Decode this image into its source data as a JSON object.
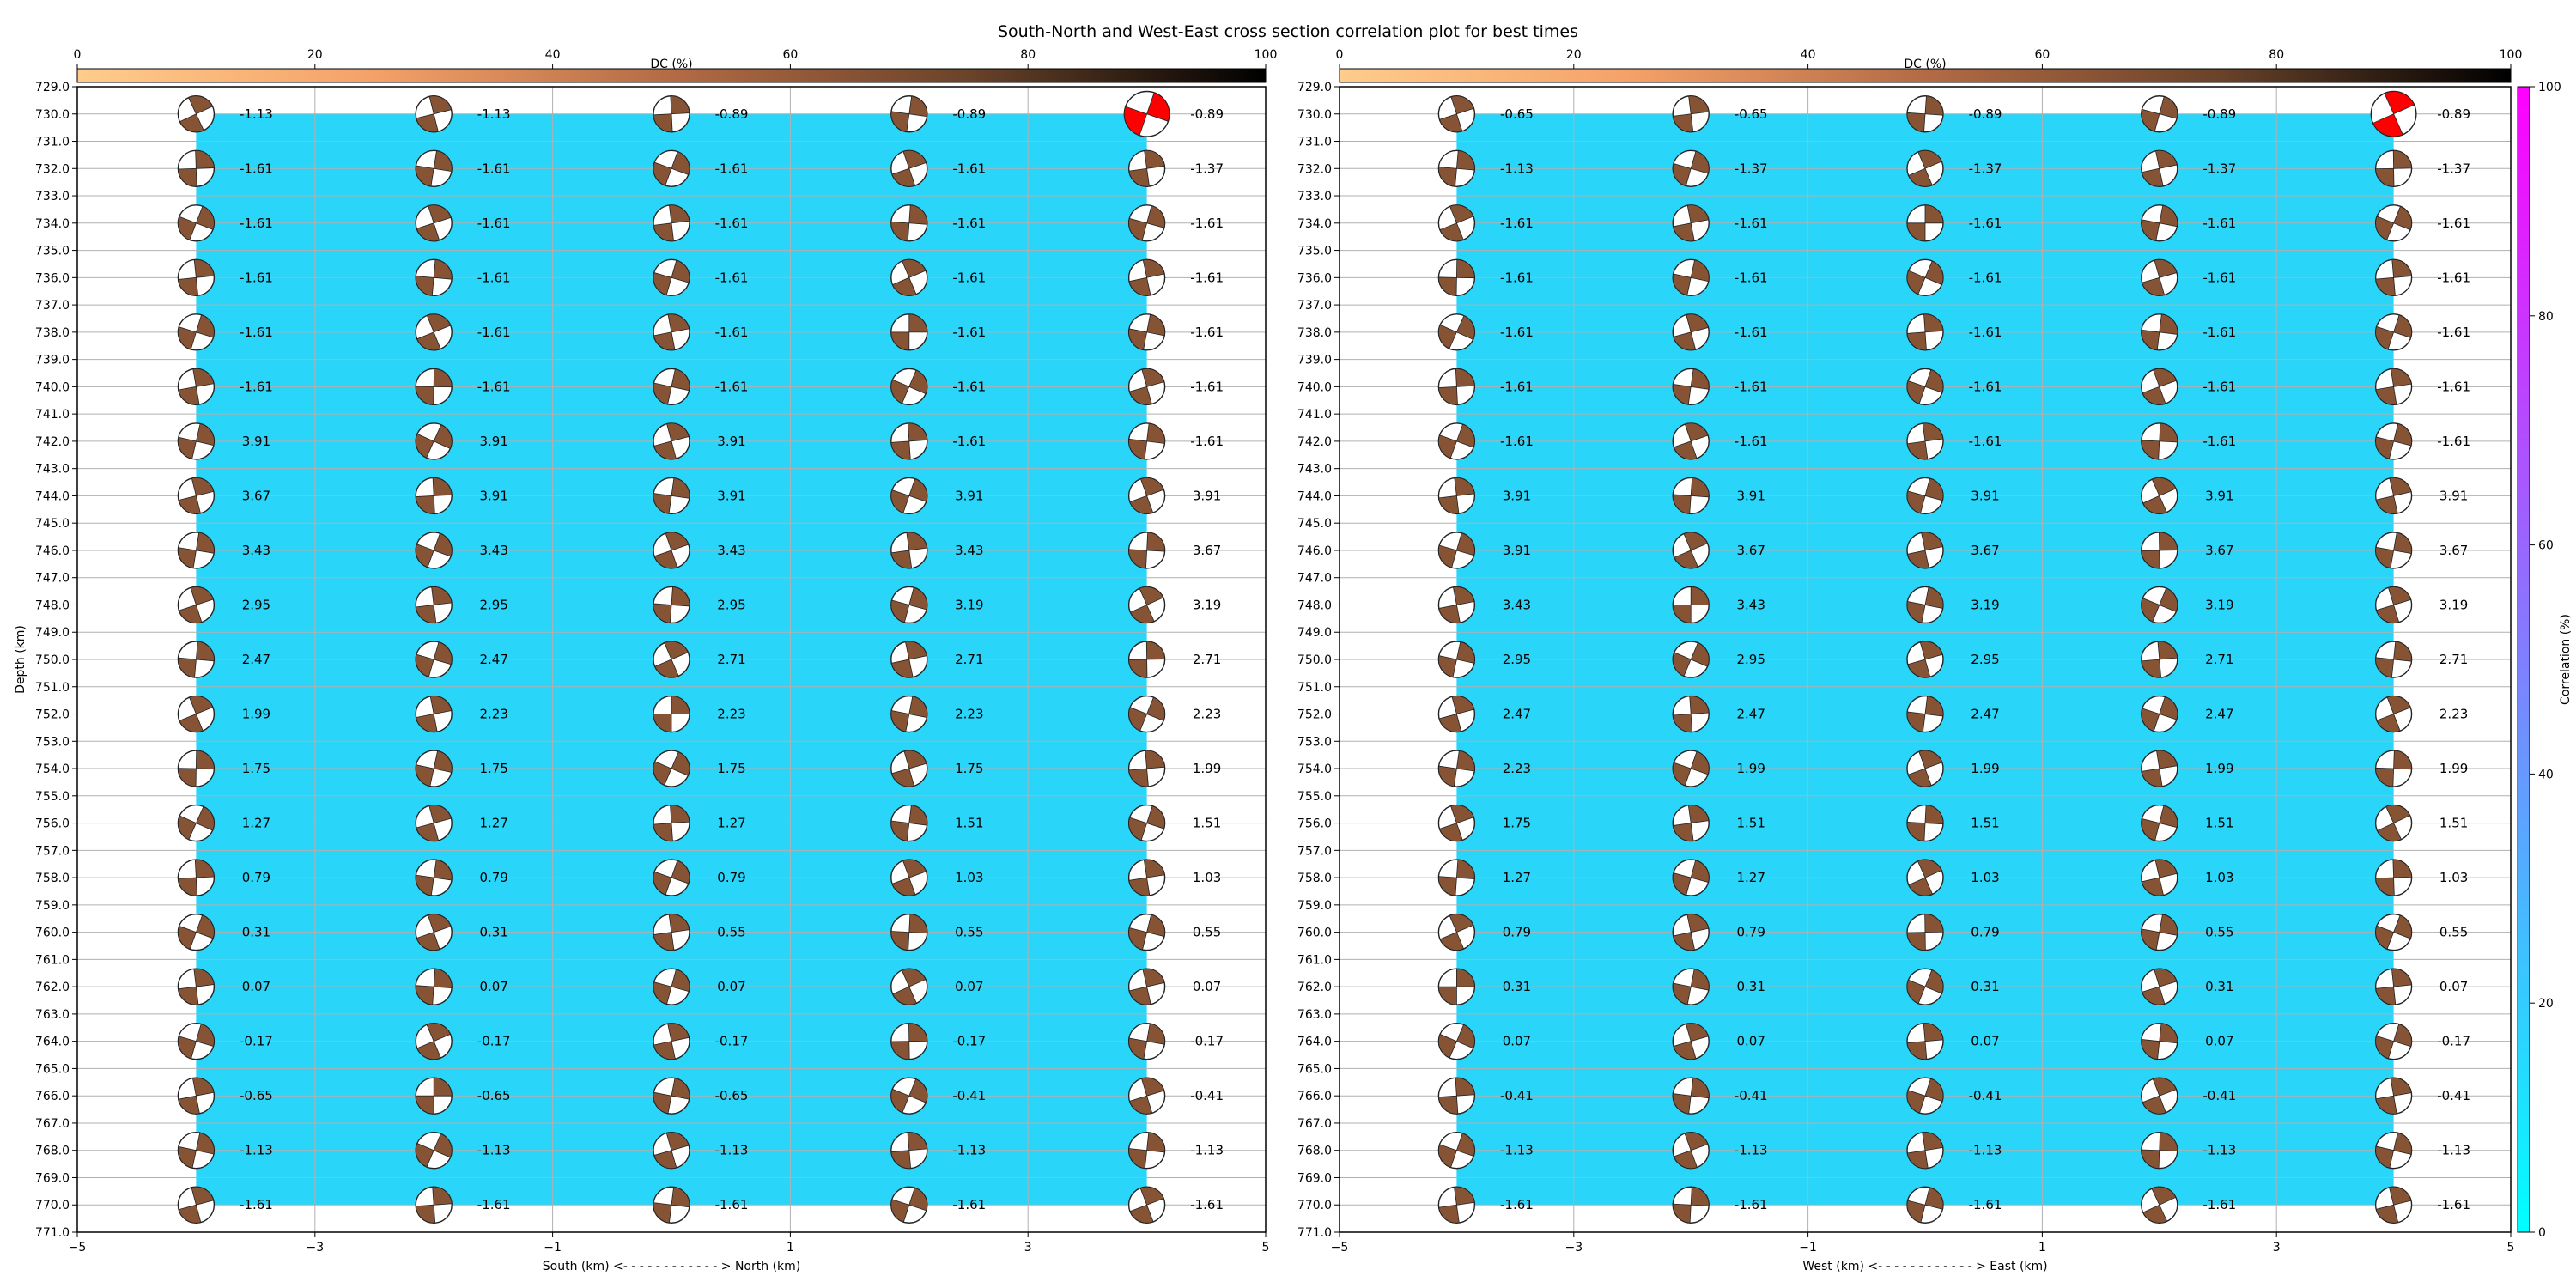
{
  "title": "South-North and West-East cross section correlation plot for best times",
  "colors": {
    "background_fill": "#29d6fa",
    "best_solution": "#ff0000",
    "grid": "#b0b0b0"
  },
  "dc_colorbar": {
    "label": "DC (%)",
    "ticks": [
      "0",
      "20",
      "40",
      "60",
      "80",
      "100"
    ],
    "range": [
      0,
      100
    ],
    "colors": [
      "#ffcc8c",
      "#f4a168",
      "#b36b45",
      "#6a432a",
      "#000000"
    ]
  },
  "correlation_colorbar": {
    "label": "Correlation (%)",
    "ticks": [
      "0",
      "20",
      "40",
      "60",
      "80",
      "100"
    ],
    "range": [
      0,
      100
    ],
    "colors": [
      "#00ffff",
      "#ff00ff"
    ]
  },
  "chart_data": [
    {
      "type": "scatter",
      "name": "south-north",
      "xlabel": "South (km) <- - - - - - - - - - - - > North (km)",
      "ylabel": "Depth (km)",
      "xlim": [
        -5,
        5
      ],
      "ylim": [
        771,
        729
      ],
      "x_ticks": [
        "−5",
        "−3",
        "−1",
        "1",
        "3",
        "5"
      ],
      "y_ticks": [
        "729.0",
        "730.0",
        "731.0",
        "732.0",
        "733.0",
        "734.0",
        "735.0",
        "736.0",
        "737.0",
        "738.0",
        "739.0",
        "740.0",
        "741.0",
        "742.0",
        "743.0",
        "744.0",
        "745.0",
        "746.0",
        "747.0",
        "748.0",
        "749.0",
        "750.0",
        "751.0",
        "752.0",
        "753.0",
        "754.0",
        "755.0",
        "756.0",
        "757.0",
        "758.0",
        "759.0",
        "760.0",
        "761.0",
        "762.0",
        "763.0",
        "764.0",
        "765.0",
        "766.0",
        "767.0",
        "768.0",
        "769.0",
        "770.0",
        "771.0"
      ],
      "x": [
        -4,
        -2,
        0,
        2,
        4
      ],
      "depths": [
        730,
        732,
        734,
        736,
        738,
        740,
        742,
        744,
        746,
        748,
        750,
        752,
        754,
        756,
        758,
        760,
        762,
        764,
        766,
        768,
        770
      ],
      "time_labels": [
        [
          "-1.13",
          "-1.13",
          "-0.89",
          "-0.89",
          "-0.89"
        ],
        [
          "-1.61",
          "-1.61",
          "-1.61",
          "-1.61",
          "-1.37"
        ],
        [
          "-1.61",
          "-1.61",
          "-1.61",
          "-1.61",
          "-1.61"
        ],
        [
          "-1.61",
          "-1.61",
          "-1.61",
          "-1.61",
          "-1.61"
        ],
        [
          "-1.61",
          "-1.61",
          "-1.61",
          "-1.61",
          "-1.61"
        ],
        [
          "-1.61",
          "-1.61",
          "-1.61",
          "-1.61",
          "-1.61"
        ],
        [
          "3.91",
          "3.91",
          "3.91",
          "-1.61",
          "-1.61"
        ],
        [
          "3.67",
          "3.91",
          "3.91",
          "3.91",
          "3.91"
        ],
        [
          "3.43",
          "3.43",
          "3.43",
          "3.43",
          "3.67"
        ],
        [
          "2.95",
          "2.95",
          "2.95",
          "3.19",
          "3.19"
        ],
        [
          "2.47",
          "2.47",
          "2.71",
          "2.71",
          "2.71"
        ],
        [
          "1.99",
          "2.23",
          "2.23",
          "2.23",
          "2.23"
        ],
        [
          "1.75",
          "1.75",
          "1.75",
          "1.75",
          "1.99"
        ],
        [
          "1.27",
          "1.27",
          "1.27",
          "1.51",
          "1.51"
        ],
        [
          "0.79",
          "0.79",
          "0.79",
          "1.03",
          "1.03"
        ],
        [
          "0.31",
          "0.31",
          "0.55",
          "0.55",
          "0.55"
        ],
        [
          "0.07",
          "0.07",
          "0.07",
          "0.07",
          "0.07"
        ],
        [
          "-0.17",
          "-0.17",
          "-0.17",
          "-0.17",
          "-0.17"
        ],
        [
          "-0.65",
          "-0.65",
          "-0.65",
          "-0.41",
          "-0.41"
        ],
        [
          "-1.13",
          "-1.13",
          "-1.13",
          "-1.13",
          "-1.13"
        ],
        [
          "-1.61",
          "-1.61",
          "-1.61",
          "-1.61",
          "-1.61"
        ]
      ],
      "correlation_percent_approx": 15,
      "dc_percent_approx": 65,
      "best_solution": {
        "x": 4,
        "depth": 730
      }
    },
    {
      "type": "scatter",
      "name": "west-east",
      "xlabel": "West (km) <- - - - - - - - - - - - > East (km)",
      "ylabel": "",
      "xlim": [
        -5,
        5
      ],
      "ylim": [
        771,
        729
      ],
      "x_ticks": [
        "−5",
        "−3",
        "−1",
        "1",
        "3",
        "5"
      ],
      "y_ticks": [
        "729.0",
        "730.0",
        "731.0",
        "732.0",
        "733.0",
        "734.0",
        "735.0",
        "736.0",
        "737.0",
        "738.0",
        "739.0",
        "740.0",
        "741.0",
        "742.0",
        "743.0",
        "744.0",
        "745.0",
        "746.0",
        "747.0",
        "748.0",
        "749.0",
        "750.0",
        "751.0",
        "752.0",
        "753.0",
        "754.0",
        "755.0",
        "756.0",
        "757.0",
        "758.0",
        "759.0",
        "760.0",
        "761.0",
        "762.0",
        "763.0",
        "764.0",
        "765.0",
        "766.0",
        "767.0",
        "768.0",
        "769.0",
        "770.0",
        "771.0"
      ],
      "x": [
        -4,
        -2,
        0,
        2,
        4
      ],
      "depths": [
        730,
        732,
        734,
        736,
        738,
        740,
        742,
        744,
        746,
        748,
        750,
        752,
        754,
        756,
        758,
        760,
        762,
        764,
        766,
        768,
        770
      ],
      "time_labels": [
        [
          "-0.65",
          "-0.65",
          "-0.89",
          "-0.89",
          "-0.89"
        ],
        [
          "-1.13",
          "-1.37",
          "-1.37",
          "-1.37",
          "-1.37"
        ],
        [
          "-1.61",
          "-1.61",
          "-1.61",
          "-1.61",
          "-1.61"
        ],
        [
          "-1.61",
          "-1.61",
          "-1.61",
          "-1.61",
          "-1.61"
        ],
        [
          "-1.61",
          "-1.61",
          "-1.61",
          "-1.61",
          "-1.61"
        ],
        [
          "-1.61",
          "-1.61",
          "-1.61",
          "-1.61",
          "-1.61"
        ],
        [
          "-1.61",
          "-1.61",
          "-1.61",
          "-1.61",
          "-1.61"
        ],
        [
          "3.91",
          "3.91",
          "3.91",
          "3.91",
          "3.91"
        ],
        [
          "3.91",
          "3.67",
          "3.67",
          "3.67",
          "3.67"
        ],
        [
          "3.43",
          "3.43",
          "3.19",
          "3.19",
          "3.19"
        ],
        [
          "2.95",
          "2.95",
          "2.95",
          "2.71",
          "2.71"
        ],
        [
          "2.47",
          "2.47",
          "2.47",
          "2.47",
          "2.23"
        ],
        [
          "2.23",
          "1.99",
          "1.99",
          "1.99",
          "1.99"
        ],
        [
          "1.75",
          "1.51",
          "1.51",
          "1.51",
          "1.51"
        ],
        [
          "1.27",
          "1.27",
          "1.03",
          "1.03",
          "1.03"
        ],
        [
          "0.79",
          "0.79",
          "0.79",
          "0.55",
          "0.55"
        ],
        [
          "0.31",
          "0.31",
          "0.31",
          "0.31",
          "0.07"
        ],
        [
          "0.07",
          "0.07",
          "0.07",
          "0.07",
          "-0.17"
        ],
        [
          "-0.41",
          "-0.41",
          "-0.41",
          "-0.41",
          "-0.41"
        ],
        [
          "-1.13",
          "-1.13",
          "-1.13",
          "-1.13",
          "-1.13"
        ],
        [
          "-1.61",
          "-1.61",
          "-1.61",
          "-1.61",
          "-1.61"
        ]
      ],
      "correlation_percent_approx": 15,
      "dc_percent_approx": 65,
      "best_solution": {
        "x": 4,
        "depth": 730
      }
    }
  ]
}
